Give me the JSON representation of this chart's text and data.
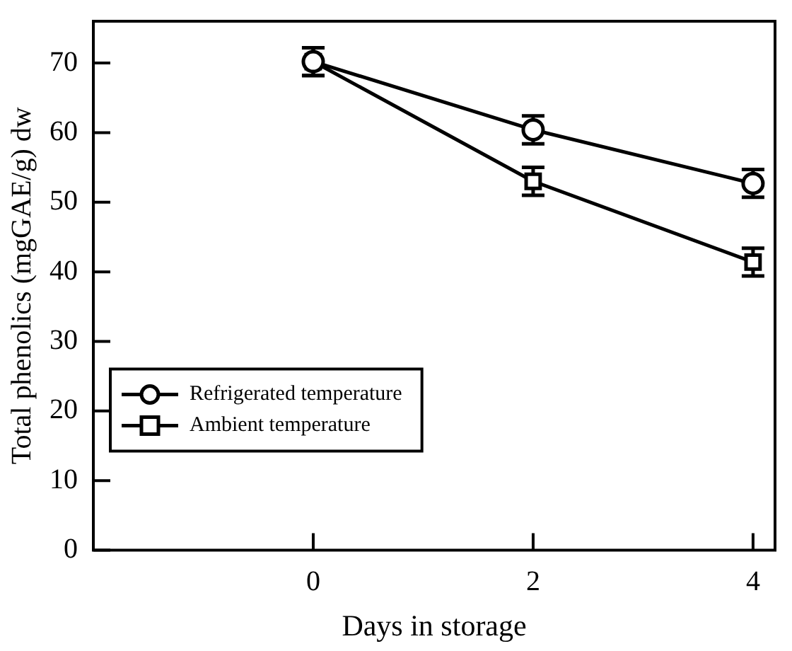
{
  "chart_data": {
    "type": "line",
    "xlabel": "Days in storage",
    "ylabel": "Total phenolics (mgGAE/g) dw",
    "x": [
      0,
      2,
      4
    ],
    "series": [
      {
        "name": "Refrigerated temperature",
        "color": "#000000",
        "marker": "circle",
        "values": [
          70.2,
          60.4,
          52.7
        ],
        "errors": [
          2,
          2,
          2
        ]
      },
      {
        "name": "Ambient temperature",
        "color": "#000000",
        "marker": "square",
        "values": [
          70.2,
          53,
          41.4
        ],
        "errors": [
          2,
          2,
          2
        ]
      }
    ],
    "xlim": [
      -2,
      4.2
    ],
    "xticks": [
      0,
      2,
      4
    ],
    "ylim": [
      0,
      76
    ],
    "yticks": [
      0,
      10,
      20,
      30,
      40,
      50,
      60,
      70
    ],
    "grid": false,
    "legend": "bottom left",
    "line_style": "solid"
  }
}
